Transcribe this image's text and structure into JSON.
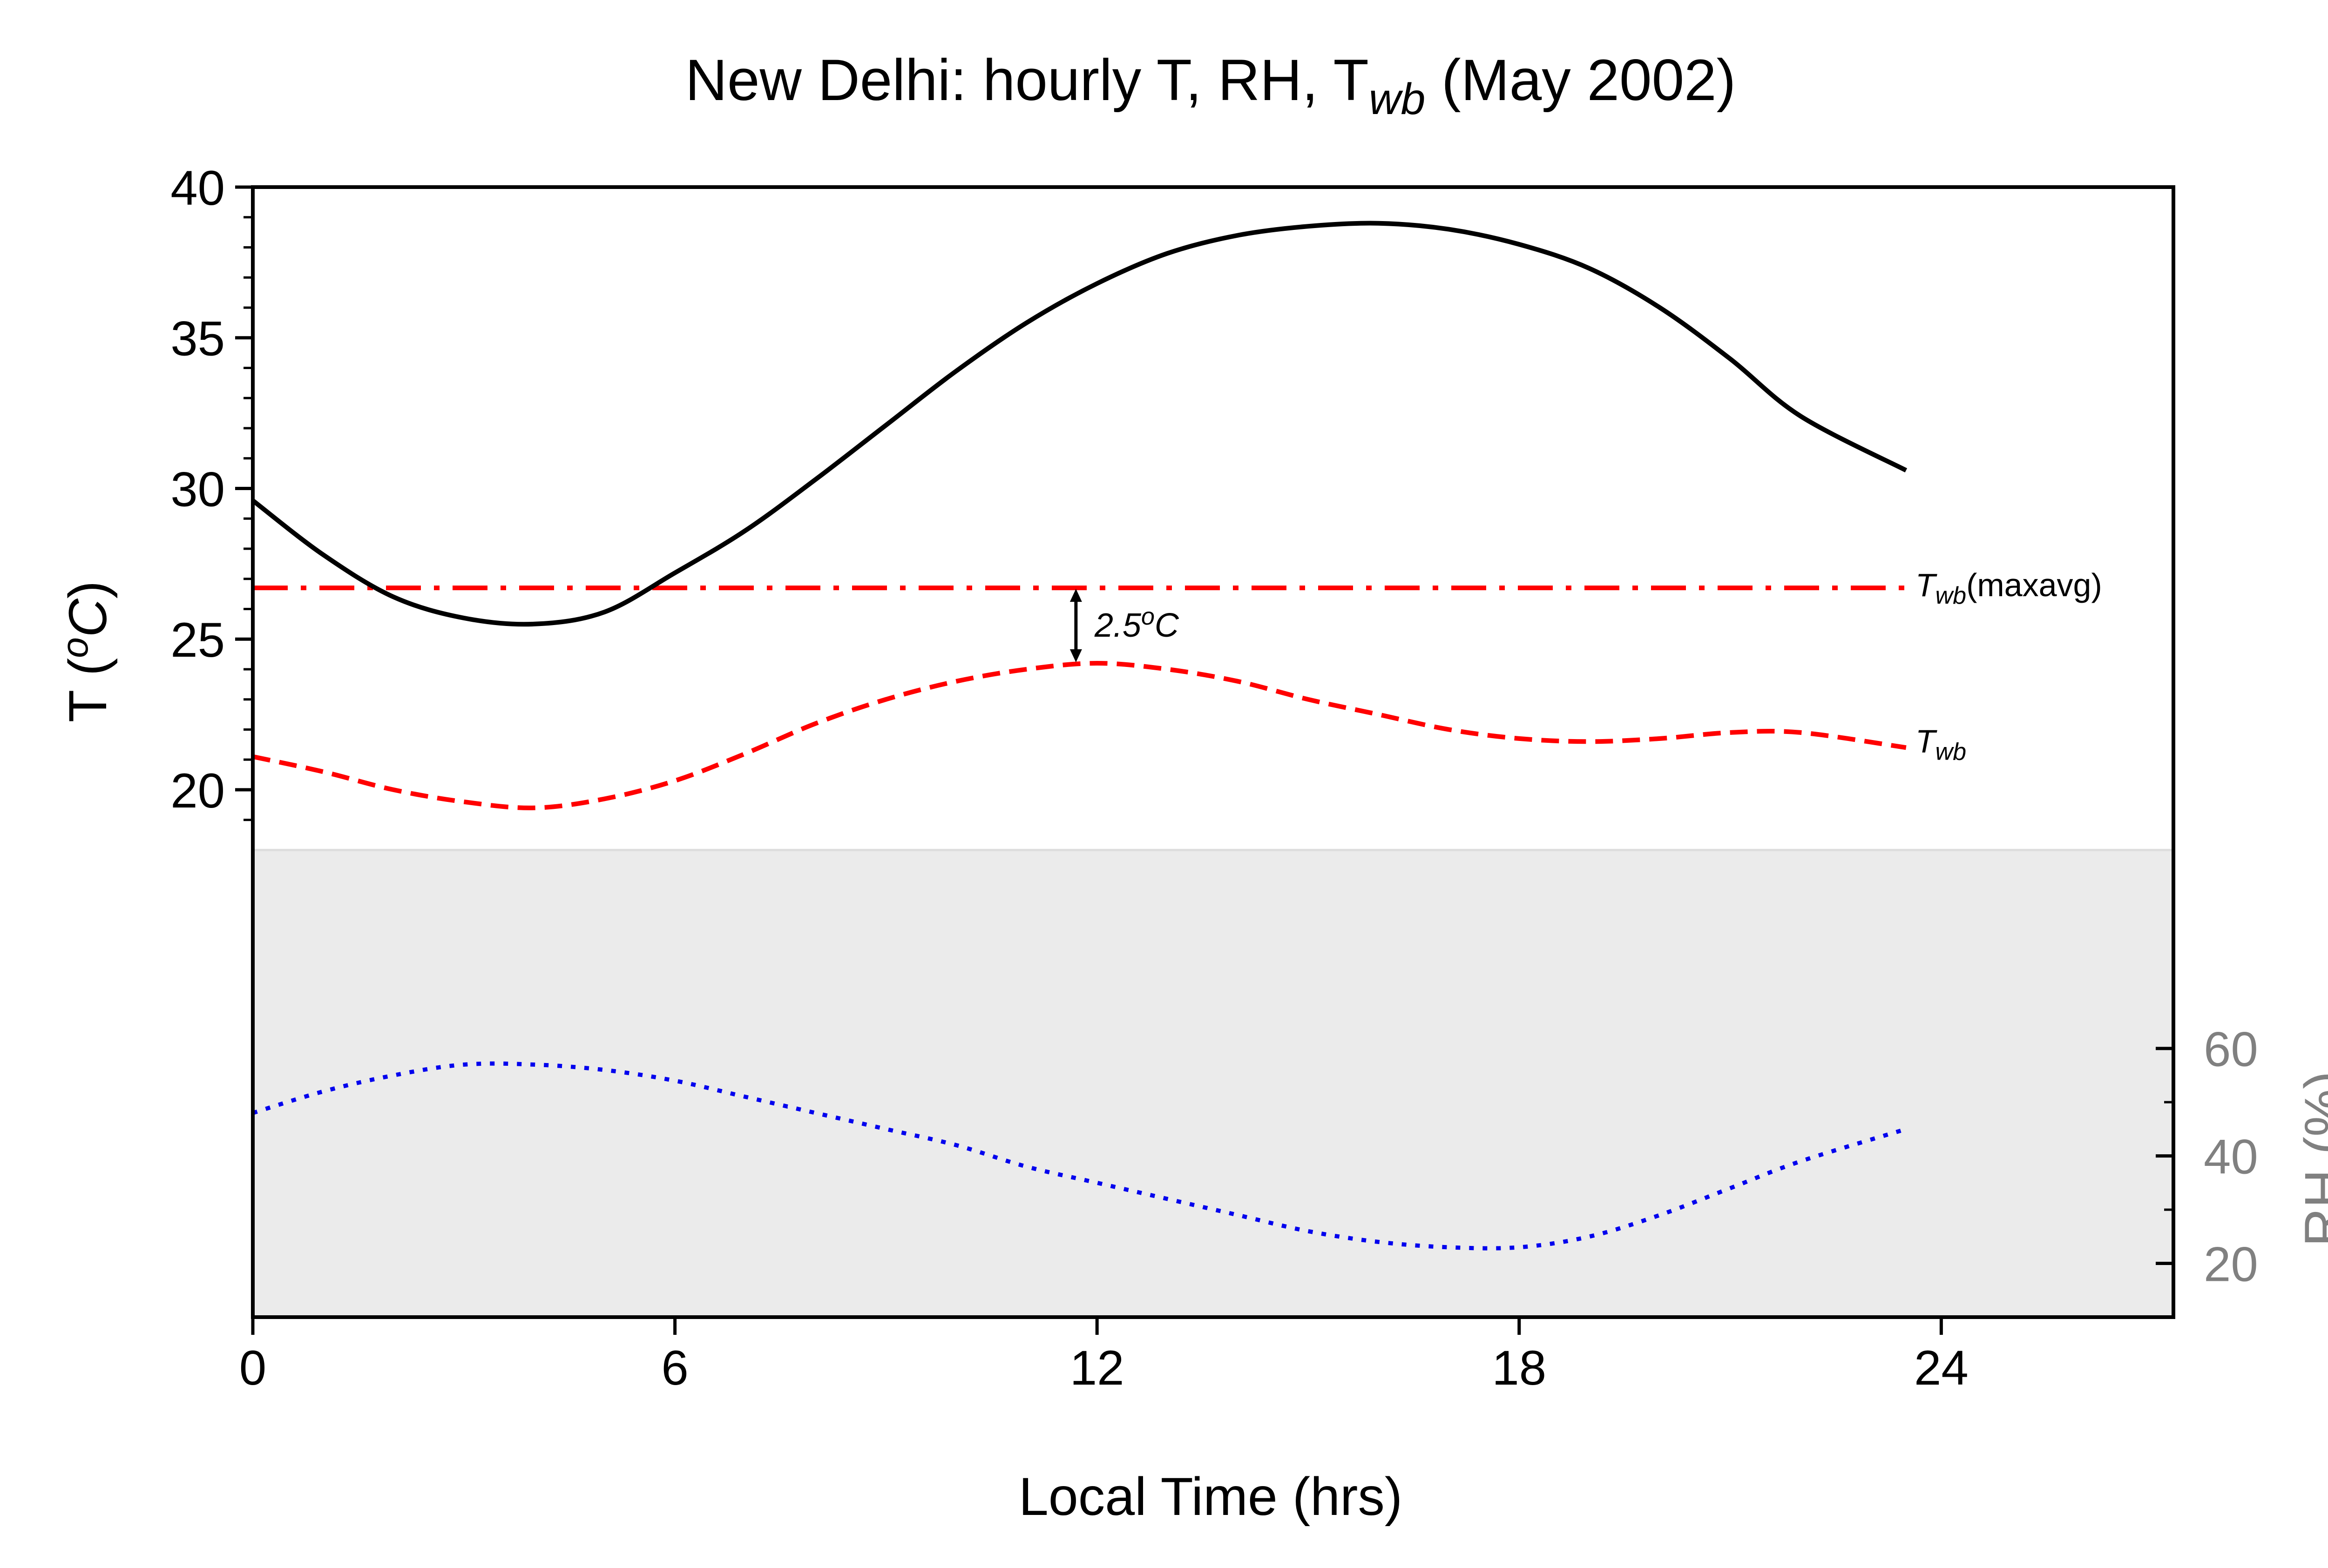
{
  "chart_data": {
    "type": "line",
    "title": {
      "main": "New Delhi: hourly T, RH, T",
      "sub": "wb",
      "tail": " (May 2002)"
    },
    "xlabel": "Local Time (hrs)",
    "ylabel": {
      "prefix": "T (",
      "sup": "o",
      "unit": "C",
      "suffix": ")"
    },
    "ylabel2": "RH (%)",
    "xlim": [
      0,
      27.3
    ],
    "ylim": [
      2.5,
      40
    ],
    "rh_axis_range": [
      10,
      65
    ],
    "rh_panel_top": 18,
    "x_ticks": [
      0,
      6,
      12,
      18,
      24
    ],
    "x_tick_labels": [
      "0",
      "6",
      "12",
      "18",
      "24"
    ],
    "y_ticks": [
      20,
      25,
      30,
      35,
      40
    ],
    "y_tick_labels": [
      "20",
      "25",
      "30",
      "35",
      "40"
    ],
    "rh_ticks": [
      20,
      40,
      60
    ],
    "rh_tick_labels": [
      "20",
      "40",
      "60"
    ],
    "grid": false,
    "colors": {
      "T": "#000000",
      "Twb": "#ff0000",
      "Twb_maxavg": "#ff0000",
      "RH": "#0000ee",
      "rh_panel": "#ebebeb",
      "rh_axis": "#808080"
    },
    "series": [
      {
        "key": "T",
        "style": "solid",
        "x": [
          0,
          1,
          2,
          3,
          4,
          5,
          6,
          7,
          8,
          9,
          10,
          11,
          12,
          13,
          14,
          15,
          16,
          17,
          18,
          19,
          20,
          21,
          22,
          23.5
        ],
        "values": [
          29.6,
          27.8,
          26.4,
          25.7,
          25.5,
          25.9,
          27.2,
          28.6,
          30.3,
          32.1,
          33.9,
          35.5,
          36.8,
          37.8,
          38.4,
          38.7,
          38.8,
          38.6,
          38.1,
          37.3,
          36.0,
          34.3,
          32.4,
          30.6
        ]
      },
      {
        "key": "Twb",
        "style": "dashed",
        "x": [
          0,
          1,
          2,
          3,
          4,
          5,
          6,
          7,
          8,
          9,
          10,
          11,
          12,
          13,
          14,
          15,
          16,
          17,
          18,
          19,
          20,
          21,
          22,
          23.5
        ],
        "values": [
          21.1,
          20.6,
          20.0,
          19.6,
          19.4,
          19.7,
          20.3,
          21.2,
          22.2,
          23.0,
          23.6,
          24.0,
          24.2,
          24.0,
          23.6,
          23.0,
          22.5,
          22.0,
          21.7,
          21.6,
          21.7,
          21.9,
          21.9,
          21.4
        ]
      },
      {
        "key": "RH",
        "style": "dotted",
        "axis": "right",
        "x": [
          0,
          1,
          2,
          3,
          4,
          5,
          6,
          7,
          8,
          9,
          10,
          11,
          12,
          13,
          14,
          15,
          16,
          17,
          18,
          19,
          20,
          21,
          22,
          23.5
        ],
        "values": [
          48,
          52,
          55,
          57,
          57,
          56,
          54,
          51,
          48,
          45,
          42,
          38,
          35,
          32,
          29,
          26,
          24,
          23,
          23,
          25,
          29,
          34,
          39,
          45
        ]
      }
    ],
    "hline": {
      "key": "Twb_maxavg",
      "style": "dashdot",
      "value": 26.7,
      "x_range": [
        0,
        23.5
      ]
    },
    "annotations": {
      "twb_maxavg_label": {
        "main": "T",
        "sub": "wb",
        "tail": "(maxavg)"
      },
      "twb_label": {
        "main": "T",
        "sub": "wb"
      },
      "gap": {
        "prefix": "2.5",
        "sup": "o",
        "unit": "C",
        "x": 11.7,
        "from": 24.2,
        "to": 26.7
      }
    }
  }
}
